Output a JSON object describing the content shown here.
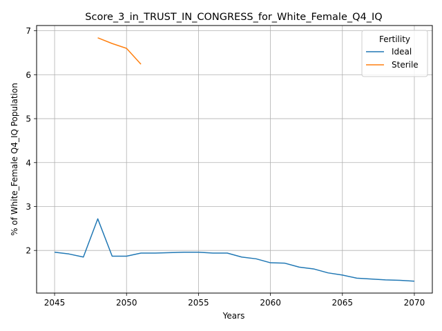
{
  "chart_data": {
    "type": "line",
    "title": "Score_3_in_TRUST_IN_CONGRESS_for_White_Female_Q4_IQ",
    "xlabel": "Years",
    "ylabel": "% of White_Female Q4_IQ Population",
    "xlim": [
      2043.75,
      2071.25
    ],
    "ylim": [
      1.03,
      7.12
    ],
    "xticks": [
      2045,
      2050,
      2055,
      2060,
      2065,
      2070
    ],
    "yticks": [
      2,
      3,
      4,
      5,
      6,
      7
    ],
    "grid": true,
    "legend": {
      "title": "Fertility",
      "position": "top-right"
    },
    "series": [
      {
        "name": "Ideal",
        "color": "#1f77b4",
        "x": [
          2045,
          2046,
          2047,
          2048,
          2049,
          2050,
          2051,
          2052,
          2053,
          2054,
          2055,
          2056,
          2057,
          2058,
          2059,
          2060,
          2061,
          2062,
          2063,
          2064,
          2065,
          2066,
          2067,
          2068,
          2069,
          2070
        ],
        "y": [
          1.96,
          1.92,
          1.85,
          2.72,
          1.87,
          1.87,
          1.94,
          1.94,
          1.95,
          1.96,
          1.96,
          1.94,
          1.94,
          1.85,
          1.81,
          1.72,
          1.71,
          1.62,
          1.58,
          1.49,
          1.44,
          1.37,
          1.35,
          1.33,
          1.32,
          1.3
        ]
      },
      {
        "name": "Sterile",
        "color": "#ff7f0e",
        "x": [
          2048,
          2049,
          2050,
          2051
        ],
        "y": [
          6.84,
          6.71,
          6.6,
          6.24
        ]
      }
    ]
  }
}
